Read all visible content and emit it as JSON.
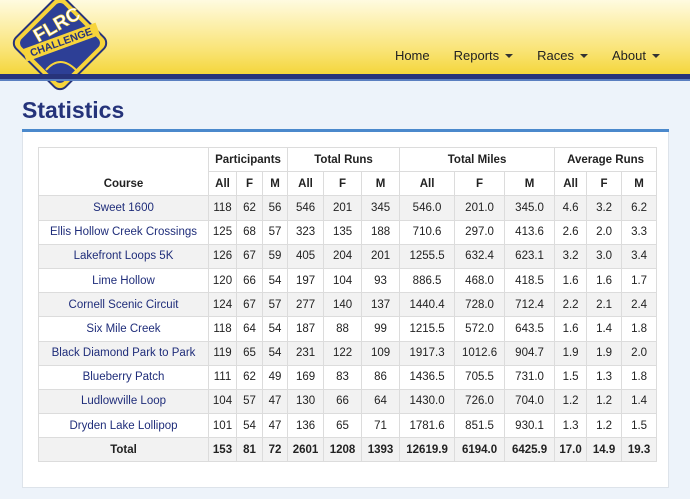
{
  "header": {
    "logo": {
      "line1": "FLRC",
      "line2": "CHALLENGE"
    },
    "nav": [
      "Home",
      "Reports",
      "Races",
      "About"
    ],
    "nav_dropdown": [
      false,
      true,
      true,
      true
    ]
  },
  "page": {
    "title": "Statistics"
  },
  "table": {
    "course_header": "Course",
    "groups": [
      "Participants",
      "Total Runs",
      "Total Miles",
      "Average Runs"
    ],
    "subheaders": [
      "All",
      "F",
      "M",
      "All",
      "F",
      "M",
      "All",
      "F",
      "M",
      "All",
      "F",
      "M"
    ],
    "rows": [
      [
        "Sweet 1600",
        "118",
        "62",
        "56",
        "546",
        "201",
        "345",
        "546.0",
        "201.0",
        "345.0",
        "4.6",
        "3.2",
        "6.2"
      ],
      [
        "Ellis Hollow Creek Crossings",
        "125",
        "68",
        "57",
        "323",
        "135",
        "188",
        "710.6",
        "297.0",
        "413.6",
        "2.6",
        "2.0",
        "3.3"
      ],
      [
        "Lakefront Loops 5K",
        "126",
        "67",
        "59",
        "405",
        "204",
        "201",
        "1255.5",
        "632.4",
        "623.1",
        "3.2",
        "3.0",
        "3.4"
      ],
      [
        "Lime Hollow",
        "120",
        "66",
        "54",
        "197",
        "104",
        "93",
        "886.5",
        "468.0",
        "418.5",
        "1.6",
        "1.6",
        "1.7"
      ],
      [
        "Cornell Scenic Circuit",
        "124",
        "67",
        "57",
        "277",
        "140",
        "137",
        "1440.4",
        "728.0",
        "712.4",
        "2.2",
        "2.1",
        "2.4"
      ],
      [
        "Six Mile Creek",
        "118",
        "64",
        "54",
        "187",
        "88",
        "99",
        "1215.5",
        "572.0",
        "643.5",
        "1.6",
        "1.4",
        "1.8"
      ],
      [
        "Black Diamond Park to Park",
        "119",
        "65",
        "54",
        "231",
        "122",
        "109",
        "1917.3",
        "1012.6",
        "904.7",
        "1.9",
        "1.9",
        "2.0"
      ],
      [
        "Blueberry Patch",
        "111",
        "62",
        "49",
        "169",
        "83",
        "86",
        "1436.5",
        "705.5",
        "731.0",
        "1.5",
        "1.3",
        "1.8"
      ],
      [
        "Ludlowville Loop",
        "104",
        "57",
        "47",
        "130",
        "66",
        "64",
        "1430.0",
        "726.0",
        "704.0",
        "1.2",
        "1.2",
        "1.4"
      ],
      [
        "Dryden Lake Lollipop",
        "101",
        "54",
        "47",
        "136",
        "65",
        "71",
        "1781.6",
        "851.5",
        "930.1",
        "1.3",
        "1.2",
        "1.5"
      ]
    ],
    "total": [
      "Total",
      "153",
      "81",
      "72",
      "2601",
      "1208",
      "1393",
      "12619.9",
      "6194.0",
      "6425.9",
      "17.0",
      "14.9",
      "19.3"
    ]
  }
}
